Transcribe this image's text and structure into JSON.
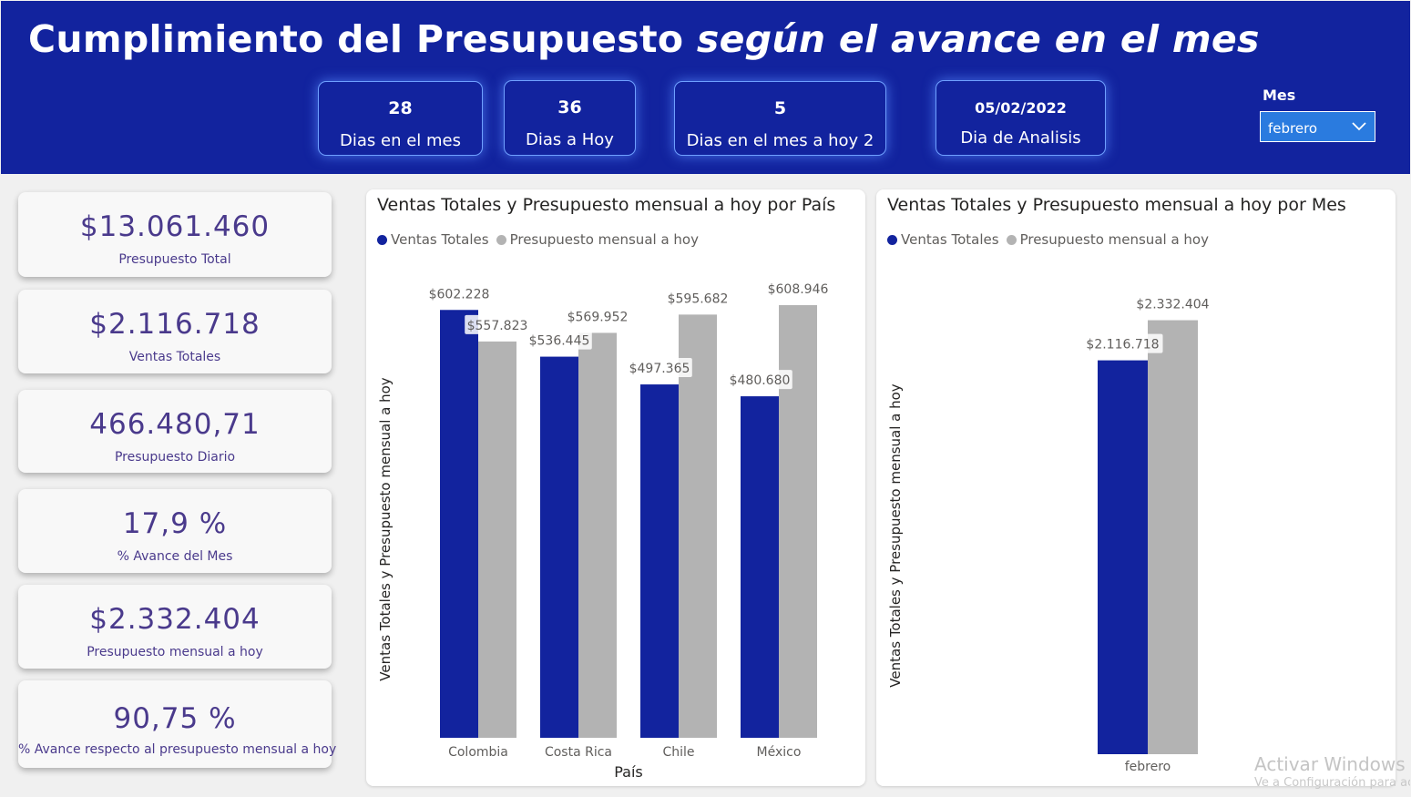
{
  "header": {
    "title_main": "Cumplimiento del Presupuesto ",
    "title_em": "según el avance en el mes",
    "cards": [
      {
        "value": "28",
        "label": "Dias en el mes"
      },
      {
        "value": "36",
        "label": "Dias a Hoy"
      },
      {
        "value": "5",
        "label": "Dias en el mes a hoy 2"
      },
      {
        "value": "05/02/2022",
        "label": "Dia de Analisis"
      }
    ],
    "slicer": {
      "title": "Mes",
      "value": "febrero",
      "icon": "chevron-down-icon"
    }
  },
  "kpis": [
    {
      "value": "$13.061.460",
      "label": "Presupuesto Total"
    },
    {
      "value": "$2.116.718",
      "label": "Ventas Totales"
    },
    {
      "value": "466.480,71",
      "label": "Presupuesto Diario"
    },
    {
      "value": "17,9 %",
      "label": "% Avance del Mes"
    },
    {
      "value": "$2.332.404",
      "label": "Presupuesto mensual a hoy"
    },
    {
      "value": "90,75 %",
      "label": "% Avance respecto al presupuesto mensual a hoy"
    }
  ],
  "colors": {
    "ventas": "#12239e",
    "presupuesto": "#b3b3b3",
    "header": "#12239e"
  },
  "chart_data": [
    {
      "type": "bar",
      "title": "Ventas Totales y Presupuesto mensual a hoy por País",
      "xlabel": "País",
      "ylabel": "Ventas Totales y Presupuesto mensual a hoy",
      "categories": [
        "Colombia",
        "Costa Rica",
        "Chile",
        "México"
      ],
      "series": [
        {
          "name": "Ventas Totales",
          "values": [
            602228,
            536445,
            497365,
            480680
          ],
          "labels": [
            "$602.228",
            "$536.445",
            "$497.365",
            "$480.680"
          ]
        },
        {
          "name": "Presupuesto mensual a hoy",
          "values": [
            557823,
            569952,
            595682,
            608946
          ],
          "labels": [
            "$557.823",
            "$569.952",
            "$595.682",
            "$608.946"
          ]
        }
      ],
      "ylim": [
        0,
        650000
      ],
      "grid": false,
      "legend": "top-left"
    },
    {
      "type": "bar",
      "title": "Ventas Totales y Presupuesto mensual a hoy por Mes",
      "xlabel": "",
      "ylabel": "Ventas Totales y Presupuesto mensual a hoy",
      "categories": [
        "febrero"
      ],
      "series": [
        {
          "name": "Ventas Totales",
          "values": [
            2116718
          ],
          "labels": [
            "$2.116.718"
          ]
        },
        {
          "name": "Presupuesto mensual a hoy",
          "values": [
            2332404
          ],
          "labels": [
            "$2.332.404"
          ]
        }
      ],
      "ylim": [
        0,
        2570000
      ],
      "grid": false,
      "legend": "top-left"
    }
  ],
  "watermark": {
    "line1": "Activar Windows",
    "line2": "Ve a Configuración para activar Windows."
  }
}
